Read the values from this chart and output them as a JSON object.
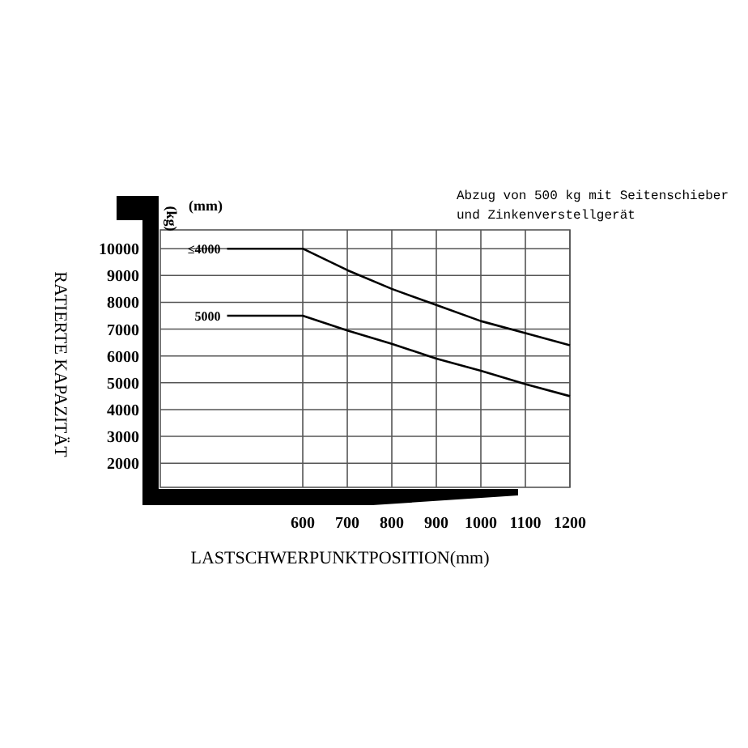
{
  "chart_data": {
    "type": "line",
    "xlabel": "LASTSCHWERPUNKTPOSITION(mm)",
    "ylabel": "RATIERTE KAPAZITÄT",
    "legend_title": "(mm)",
    "annotations": [
      "(kg)",
      "Abzug von 500 kg mit Seitenschieber und Zinkenverstellgerät"
    ],
    "series": [
      {
        "name": "≤4000",
        "color": "#000000",
        "x": [
          430,
          600,
          700,
          800,
          900,
          1000,
          1100,
          1200
        ],
        "values": [
          10000,
          10000,
          9200,
          8500,
          7900,
          7300,
          6850,
          6400
        ]
      },
      {
        "name": "5000",
        "color": "#000000",
        "x": [
          430,
          600,
          700,
          800,
          900,
          1000,
          1100,
          1200
        ],
        "values": [
          7500,
          7500,
          6950,
          6450,
          5900,
          5450,
          4950,
          4500
        ]
      }
    ],
    "xlim": [
      280,
      1200
    ],
    "ylim": [
      1100,
      10700
    ],
    "xticks": [
      600,
      700,
      800,
      900,
      1000,
      1100,
      1200
    ],
    "yticks": [
      2000,
      3000,
      4000,
      5000,
      6000,
      7000,
      8000,
      9000,
      10000
    ],
    "grid": true,
    "legend": false,
    "marker": "none",
    "line_style": "solid"
  }
}
